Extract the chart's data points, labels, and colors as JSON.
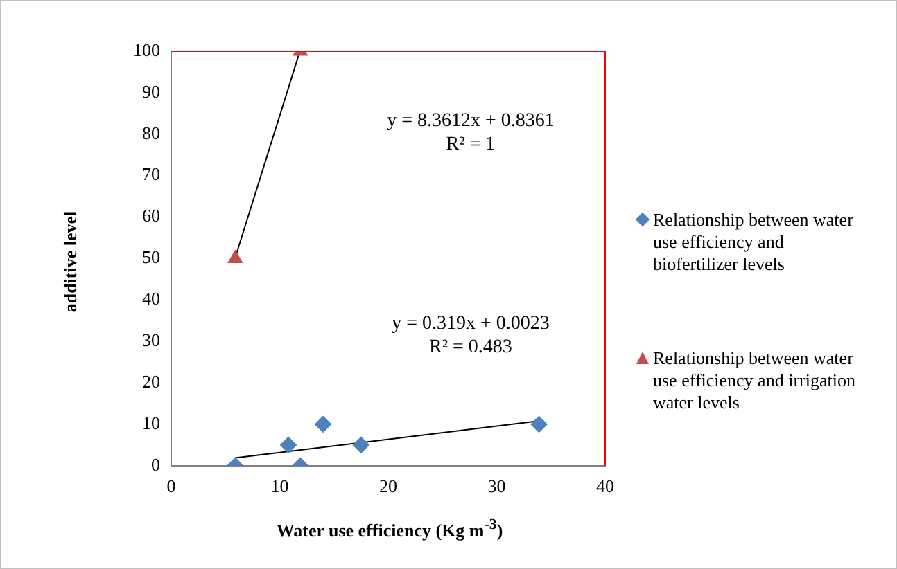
{
  "chart_data": {
    "type": "scatter",
    "xlabel": "Water use efficiency (Kg m$^{-3}$)",
    "ylabel": "additive level",
    "xlim": [
      0,
      40
    ],
    "xticks": [
      0,
      10,
      20,
      30,
      40
    ],
    "ylim": [
      0,
      100
    ],
    "yticks": [
      0,
      10,
      20,
      30,
      40,
      50,
      60,
      70,
      80,
      90,
      100
    ],
    "grid": false,
    "legend": "right",
    "series": [
      {
        "name": "Relationship between water use efficiency and biofertilizer levels",
        "color": "#4f81bd",
        "marker": "diamond",
        "x": [
          5.9,
          10.8,
          11.9,
          14.0,
          17.5,
          33.9
        ],
        "values": [
          0,
          5,
          0,
          10,
          5,
          10
        ]
      },
      {
        "name": "Relationship between water use efficiency and irrigation water levels",
        "color": "#c0504d",
        "marker": "triangle",
        "x": [
          5.9,
          11.9
        ],
        "values": [
          50,
          100
        ]
      },
      {
        "type": "line",
        "color": "#000000",
        "marker": "none",
        "x": [
          5.9,
          33.9
        ],
        "values": [
          1.9,
          10.8
        ]
      },
      {
        "type": "line",
        "color": "#000000",
        "marker": "none",
        "x": [
          5.9,
          11.85
        ],
        "values": [
          50.2,
          99.9
        ]
      }
    ],
    "annotations": [
      "y = 8.3612x + 0.8361\nR² = 1",
      "y = 0.319x + 0.0023\nR² = 0.483"
    ]
  }
}
